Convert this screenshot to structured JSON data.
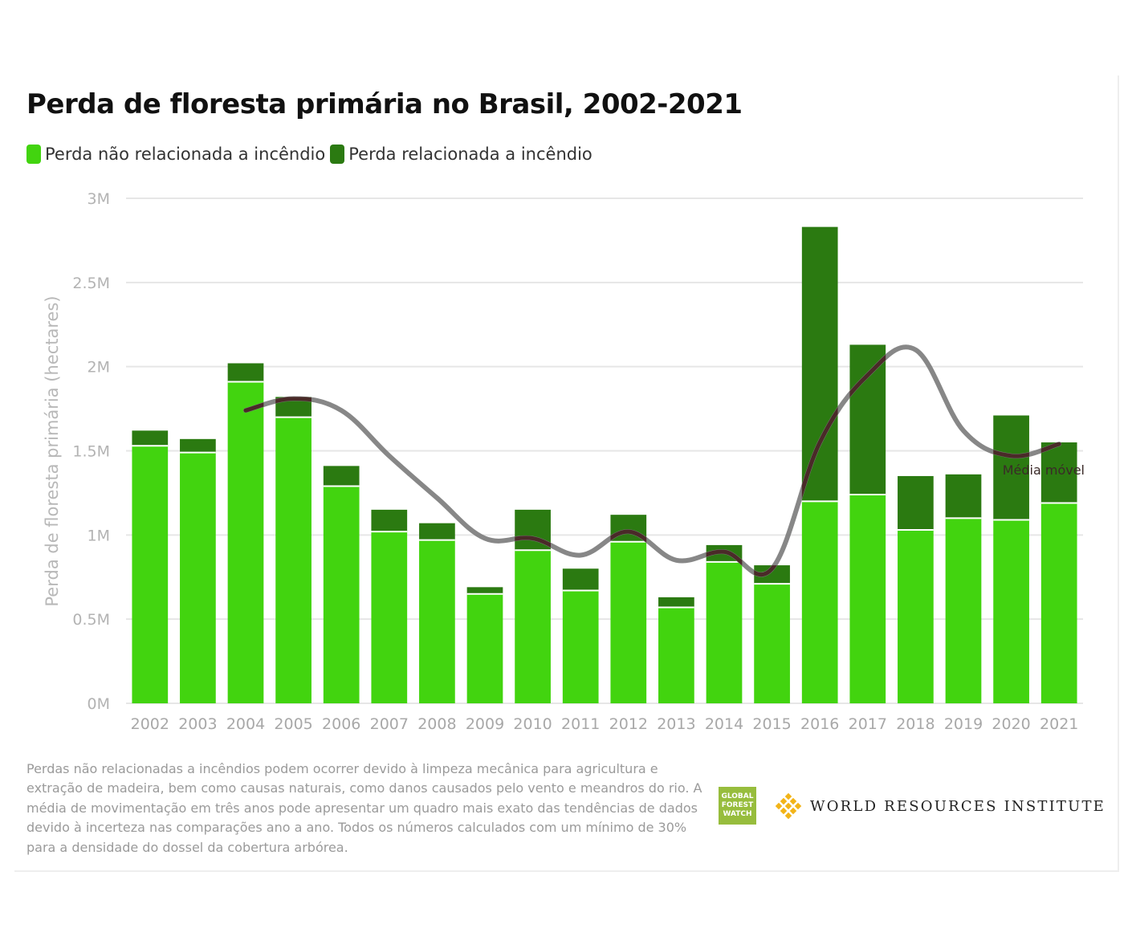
{
  "chart_data": {
    "type": "bar",
    "stacked": true,
    "title": "Perda de floresta primária no Brasil, 2002-2021",
    "ylabel": "Perda de floresta primária (hectares)",
    "xlabel": "",
    "ylim": [
      0,
      3000000
    ],
    "yticks": [
      {
        "value": 0,
        "label": "0M"
      },
      {
        "value": 500000,
        "label": "0.5M"
      },
      {
        "value": 1000000,
        "label": "1M"
      },
      {
        "value": 1500000,
        "label": "1.5M"
      },
      {
        "value": 2000000,
        "label": "2M"
      },
      {
        "value": 2500000,
        "label": "2.5M"
      },
      {
        "value": 3000000,
        "label": "3M"
      }
    ],
    "grid": true,
    "legend_position": "top-left",
    "categories": [
      "2002",
      "2003",
      "2004",
      "2005",
      "2006",
      "2007",
      "2008",
      "2009",
      "2010",
      "2011",
      "2012",
      "2013",
      "2014",
      "2015",
      "2016",
      "2017",
      "2018",
      "2019",
      "2020",
      "2021"
    ],
    "series": [
      {
        "name": "Perda não relacionada a incêndio",
        "color": "#42d40f",
        "values": [
          1530000,
          1490000,
          1910000,
          1700000,
          1290000,
          1020000,
          970000,
          650000,
          910000,
          670000,
          960000,
          570000,
          840000,
          710000,
          1200000,
          1240000,
          1030000,
          1100000,
          1090000,
          1190000
        ]
      },
      {
        "name": "Perda relacionada a incêndio",
        "color": "#2b7a11",
        "values": [
          90000,
          80000,
          110000,
          120000,
          120000,
          130000,
          100000,
          40000,
          240000,
          130000,
          160000,
          60000,
          100000,
          110000,
          1630000,
          890000,
          320000,
          260000,
          620000,
          360000
        ]
      }
    ],
    "moving_average": {
      "name": "Média móvel",
      "color": "#4a2a28",
      "band_color": "#7a7a7a",
      "x": [
        "2004",
        "2005",
        "2006",
        "2007",
        "2008",
        "2009",
        "2010",
        "2011",
        "2012",
        "2013",
        "2014",
        "2015",
        "2016",
        "2017",
        "2018",
        "2019",
        "2020",
        "2021"
      ],
      "values": [
        1740000,
        1810000,
        1740000,
        1470000,
        1220000,
        980000,
        980000,
        880000,
        1020000,
        850000,
        900000,
        800000,
        1550000,
        1950000,
        2100000,
        1620000,
        1470000,
        1540000
      ]
    }
  },
  "legend": {
    "items": [
      {
        "label": "Perda não relacionada a incêndio",
        "color": "#42d40f"
      },
      {
        "label": "Perda relacionada a incêndio",
        "color": "#2b7a11"
      }
    ]
  },
  "footnote": "Perdas não relacionadas a incêndios podem ocorrer devido à limpeza mecânica para agricultura e extração de madeira, bem como causas naturais, como danos causados pelo vento e meandros do rio. A média de movimentação em três anos pode apresentar um quadro mais exato das tendências de dados devido à incerteza nas comparações ano a ano. Todos os números calculados com um mínimo de 30% para a densidade do dossel da cobertura arbórea.",
  "logos": {
    "gfw_lines": [
      "GLOBAL",
      "FOREST",
      "WATCH"
    ],
    "wri_name": "WORLD RESOURCES INSTITUTE",
    "wri_icon": "wri-star-icon",
    "wri_icon_color": "#f2b418"
  }
}
